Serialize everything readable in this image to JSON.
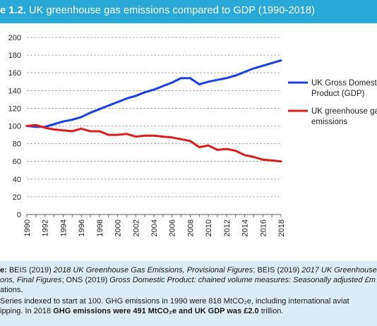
{
  "title": {
    "prefix": "e 1.2.",
    "text": " UK greenhouse gas emissions compared to GDP (1990-2018)"
  },
  "colors": {
    "title_bg": "#29a9d8",
    "gdp": "#1a3fe0",
    "ghg": "#d81e1e",
    "footer_bg": "#dcecf6",
    "grid": "#9a9a9a"
  },
  "chart_data": {
    "type": "line",
    "title": "UK greenhouse gas emissions compared to GDP (1990-2018)",
    "xlabel": "",
    "ylabel": "",
    "xlim": [
      1990,
      2018
    ],
    "ylim": [
      0,
      200
    ],
    "y_ticks": [
      "0",
      "20",
      "40",
      "60",
      "80",
      "100",
      "120",
      "140",
      "160",
      "180",
      "200"
    ],
    "x_ticks": [
      "1990",
      "1992",
      "1994",
      "1996",
      "1998",
      "2000",
      "2002",
      "2004",
      "2006",
      "2008",
      "2010",
      "2012",
      "2014",
      "2016",
      "2018"
    ],
    "grid": "horizontal dashed",
    "legend_position": "right",
    "x": [
      1990,
      1991,
      1992,
      1993,
      1994,
      1995,
      1996,
      1997,
      1998,
      1999,
      2000,
      2001,
      2002,
      2003,
      2004,
      2005,
      2006,
      2007,
      2008,
      2009,
      2010,
      2011,
      2012,
      2013,
      2014,
      2015,
      2016,
      2017,
      2018
    ],
    "series": [
      {
        "name": "UK Gross Domestic Product (GDP)",
        "legend_lines": [
          "UK Gross Domesti",
          "Product (GDP)"
        ],
        "values": [
          100,
          99,
          99,
          102,
          105,
          107,
          110,
          115,
          119,
          123,
          127,
          131,
          134,
          138,
          141,
          145,
          149,
          154,
          154,
          147,
          150,
          152,
          154,
          157,
          161,
          165,
          168,
          171,
          174
        ]
      },
      {
        "name": "UK greenhouse gas emissions",
        "legend_lines": [
          "UK greenhouse ga",
          "emissions"
        ],
        "values": [
          100,
          101,
          98,
          96,
          95,
          94,
          97,
          94,
          94,
          90,
          90,
          91,
          88,
          89,
          89,
          88,
          87,
          85,
          83,
          76,
          78,
          73,
          74,
          72,
          67,
          65,
          62,
          61,
          60
        ]
      }
    ]
  },
  "footer": {
    "source_label": "e:",
    "source_text_1": " BEIS (2019) ",
    "source_italic_1": "2018 UK Greenhouse Gas Emissions, Provisional Figures",
    "source_text_2": "; BEIS (2019) ",
    "source_italic_2": "2017 UK Greenhouse G",
    "line2_italic_1": "ons, Final Figures",
    "line2_text_1": "; ONS (2019) ",
    "line2_italic_2": "Gross Domestic Product: chained volume measures: Seasonally adjusted £m",
    "line3_text": "ations.",
    "line4_text": "Series indexed to start at 100. GHG emissions in 1990 were 818 MtCO₂e, including international aviat",
    "line5_text_1": "ipping. In 2018 ",
    "line5_bold_1": "GHG emissions were 491 MtCO₂e and UK GDP was £2.0",
    "line5_text_2": " trillion."
  }
}
